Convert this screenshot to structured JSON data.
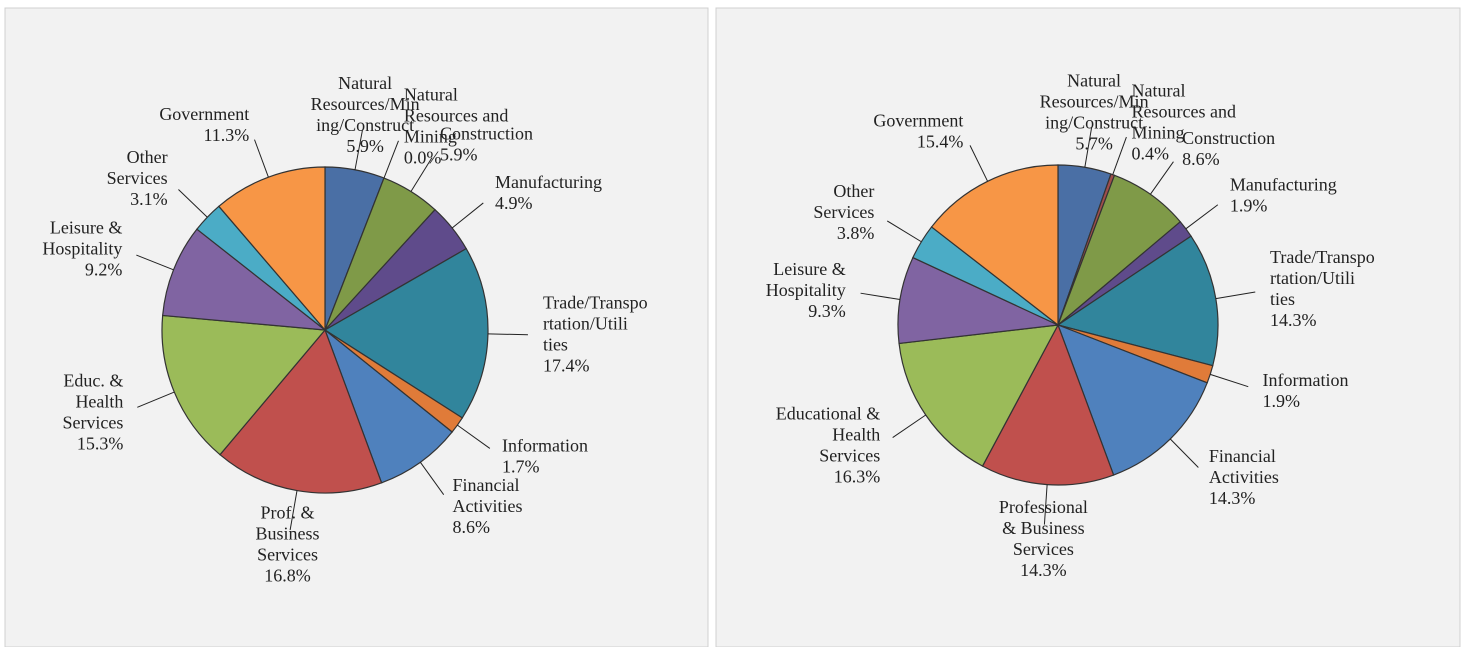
{
  "chart_data": [
    {
      "type": "pie",
      "categories": [
        "Natural Resources/Mining/Construct",
        "Natural Resources and Mining",
        "Construction",
        "Manufacturing",
        "Trade/Transportation/Utilities",
        "Information",
        "Financial Activities",
        "Prof. & Business Services",
        "Educ. & Health Services",
        "Leisure & Hospitality",
        "Other Services",
        "Government"
      ],
      "values": [
        5.9,
        0.0,
        5.9,
        4.9,
        17.4,
        1.7,
        8.6,
        16.8,
        15.3,
        9.2,
        3.1,
        11.3
      ],
      "value_labels": [
        "5.9%",
        "0.0%",
        "5.9%",
        "4.9%",
        "17.4%",
        "1.7%",
        "8.6%",
        "16.8%",
        "15.3%",
        "9.2%",
        "3.1%",
        "11.3%"
      ],
      "colors": [
        "#4a6fa5",
        "#a04d4b",
        "#7f9a48",
        "#5f4b8b",
        "#31859c",
        "#e07b39",
        "#4f81bd",
        "#c0504d",
        "#9bbb59",
        "#8064a2",
        "#4bacc6",
        "#f79646"
      ]
    },
    {
      "type": "pie",
      "categories": [
        "Natural Resources/Mining/Construct",
        "Natural Resources and Mining",
        "Construction",
        "Manufacturing",
        "Trade/Transportation/Utilities",
        "Information",
        "Financial Activities",
        "Professional & Business Services",
        "Educational & Health Services",
        "Leisure & Hospitality",
        "Other Services",
        "Government"
      ],
      "values": [
        5.7,
        0.4,
        8.6,
        1.9,
        14.3,
        1.9,
        14.3,
        14.3,
        16.3,
        9.3,
        3.8,
        15.4
      ],
      "value_labels": [
        "5.7%",
        "0.4%",
        "8.6%",
        "1.9%",
        "14.3%",
        "1.9%",
        "14.3%",
        "14.3%",
        "16.3%",
        "9.3%",
        "3.8%",
        "15.4%"
      ],
      "colors": [
        "#4a6fa5",
        "#a04d4b",
        "#7f9a48",
        "#5f4b8b",
        "#31859c",
        "#e07b39",
        "#4f81bd",
        "#c0504d",
        "#9bbb59",
        "#8064a2",
        "#4bacc6",
        "#f79646"
      ]
    }
  ]
}
